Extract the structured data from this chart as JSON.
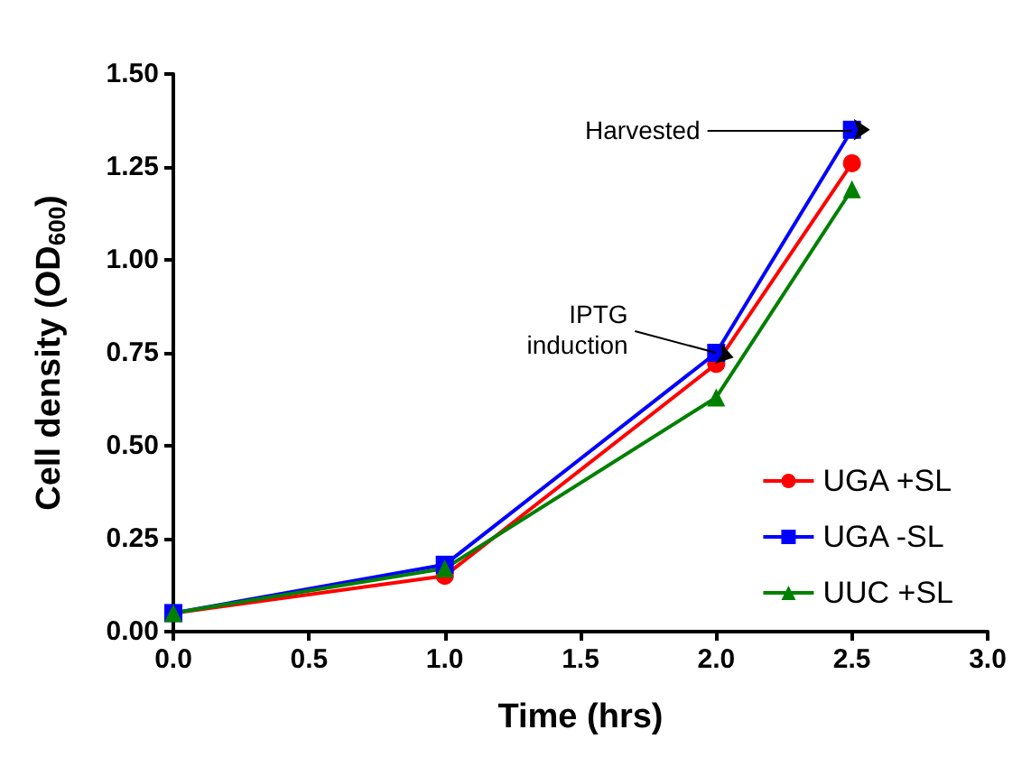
{
  "chart_data": {
    "type": "line",
    "xlabel": "Time (hrs)",
    "ylabel": "Cell density (OD$_{600}$)",
    "x": [
      0,
      1,
      2,
      2.5
    ],
    "series": [
      {
        "name": "UGA +SL",
        "color": "#ff0000",
        "marker": "circle",
        "values": [
          0.05,
          0.15,
          0.72,
          1.26
        ]
      },
      {
        "name": "UGA -SL",
        "color": "#0000ff",
        "marker": "square",
        "values": [
          0.05,
          0.18,
          0.75,
          1.35
        ]
      },
      {
        "name": "UUC +SL",
        "color": "#008000",
        "marker": "triangle",
        "values": [
          0.05,
          0.17,
          0.63,
          1.19
        ]
      }
    ],
    "xlim": [
      0,
      3
    ],
    "xticks": [
      {
        "value": 0,
        "label": "0.0"
      },
      {
        "value": 0.5,
        "label": "0.5"
      },
      {
        "value": 1,
        "label": "1.0"
      },
      {
        "value": 1.5,
        "label": "1.5"
      },
      {
        "value": 2,
        "label": "2.0"
      },
      {
        "value": 2.5,
        "label": "2.5"
      },
      {
        "value": 3,
        "label": "3.0"
      }
    ],
    "ylim": [
      0,
      1.5
    ],
    "yticks": [
      {
        "value": 0,
        "label": "0.00"
      },
      {
        "value": 0.25,
        "label": "0.25"
      },
      {
        "value": 0.5,
        "label": "0.50"
      },
      {
        "value": 0.75,
        "label": "0.75"
      },
      {
        "value": 1,
        "label": "1.00"
      },
      {
        "value": 1.25,
        "label": "1.25"
      },
      {
        "value": 1.5,
        "label": "1.50"
      }
    ],
    "annotations": [
      {
        "text": "Harvested",
        "x": 2.5,
        "y": 1.35
      },
      {
        "text": "IPTG\ninduction",
        "x": 2,
        "y": 0.75
      }
    ],
    "legend": "bottom right",
    "grid": false,
    "line_style": "solid"
  }
}
